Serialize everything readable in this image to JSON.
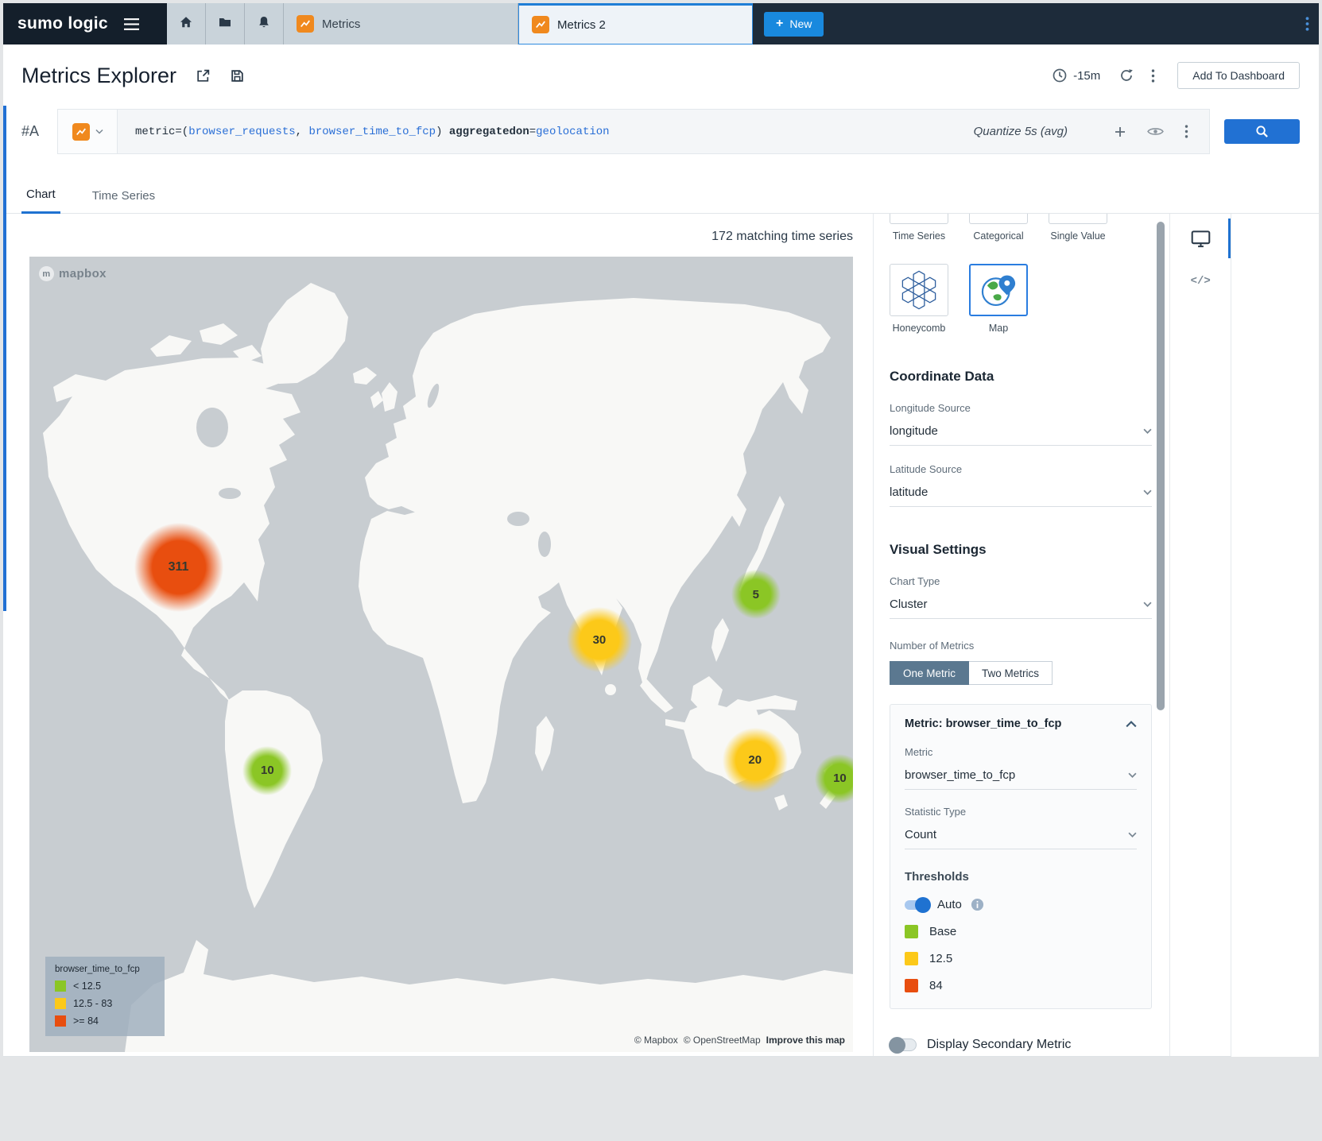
{
  "theme": {
    "accent": "#1f72d1",
    "nav_dark": "#1d2b3a",
    "orange": "#f0891e"
  },
  "nav": {
    "logo": "sumo logic",
    "tab_metrics": "Metrics",
    "tab_metrics2": "Metrics 2",
    "new_button": "New"
  },
  "header": {
    "title": "Metrics Explorer",
    "time_range": "-15m",
    "add_to_dashboard": "Add To Dashboard"
  },
  "query": {
    "row_id": "#A",
    "part1": "metric=(",
    "metric1": "browser_requests",
    "sep": ", ",
    "metric2": "browser_time_to_fcp",
    "part2": ") ",
    "agg_key": "aggregatedon",
    "eq": "=",
    "agg_value": "geolocation",
    "quantize": "Quantize 5s (avg)"
  },
  "tabs": {
    "chart": "Chart",
    "time_series": "Time Series"
  },
  "chart": {
    "matching": "172 matching time series",
    "mapbox_logo": "mapbox",
    "attribution_mapbox": "© Mapbox",
    "attribution_osm": "© OpenStreetMap",
    "improve": "Improve this map"
  },
  "chart_data": {
    "type": "map-cluster",
    "metric": "browser_time_to_fcp",
    "statistic": "Count",
    "thresholds": {
      "base": "< 12.5",
      "mid": "12.5 - 83",
      "high": ">= 84"
    },
    "colors": {
      "low": "#8bc625",
      "mid": "#fcc919",
      "high": "#e84e0f"
    },
    "clusters": [
      {
        "value": 311,
        "level": "high",
        "region": "north-america",
        "x_pct": 18.1,
        "y_pct": 39.1
      },
      {
        "value": 10,
        "level": "low",
        "region": "south-america",
        "x_pct": 28.9,
        "y_pct": 64.6
      },
      {
        "value": 30,
        "level": "mid",
        "region": "south-asia",
        "x_pct": 69.2,
        "y_pct": 48.2
      },
      {
        "value": 5,
        "level": "low",
        "region": "japan",
        "x_pct": 88.2,
        "y_pct": 42.5
      },
      {
        "value": 20,
        "level": "mid",
        "region": "australia",
        "x_pct": 88.1,
        "y_pct": 63.3
      },
      {
        "value": 10,
        "level": "low",
        "region": "new-zealand",
        "x_pct": 98.4,
        "y_pct": 65.6
      }
    ]
  },
  "legend": {
    "title": "browser_time_to_fcp",
    "items": [
      {
        "label": "< 12.5",
        "color": "#8bc625"
      },
      {
        "label": "12.5 - 83",
        "color": "#fcc919"
      },
      {
        "label": ">= 84",
        "color": "#e84e0f"
      }
    ]
  },
  "settings": {
    "chart_types": {
      "row1": [
        "Time Series",
        "Categorical",
        "Single Value"
      ],
      "honeycomb": "Honeycomb",
      "map": "Map"
    },
    "coordinate": {
      "heading": "Coordinate Data",
      "longitude_label": "Longitude Source",
      "longitude_value": "longitude",
      "latitude_label": "Latitude Source",
      "latitude_value": "latitude"
    },
    "visual": {
      "heading": "Visual Settings",
      "chart_type_label": "Chart Type",
      "chart_type_value": "Cluster",
      "num_metrics_label": "Number of Metrics",
      "one_metric": "One Metric",
      "two_metrics": "Two Metrics"
    },
    "metric_card": {
      "header": "Metric: browser_time_to_fcp",
      "metric_label": "Metric",
      "metric_value": "browser_time_to_fcp",
      "stat_label": "Statistic Type",
      "stat_value": "Count",
      "thresholds_label": "Thresholds",
      "auto_label": "Auto",
      "threshold_rows": [
        {
          "label": "Base",
          "color": "#8bc625"
        },
        {
          "label": "12.5",
          "color": "#fcc919"
        },
        {
          "label": "84",
          "color": "#e84e0f"
        }
      ]
    },
    "secondary_toggle": "Display Secondary Metric"
  }
}
